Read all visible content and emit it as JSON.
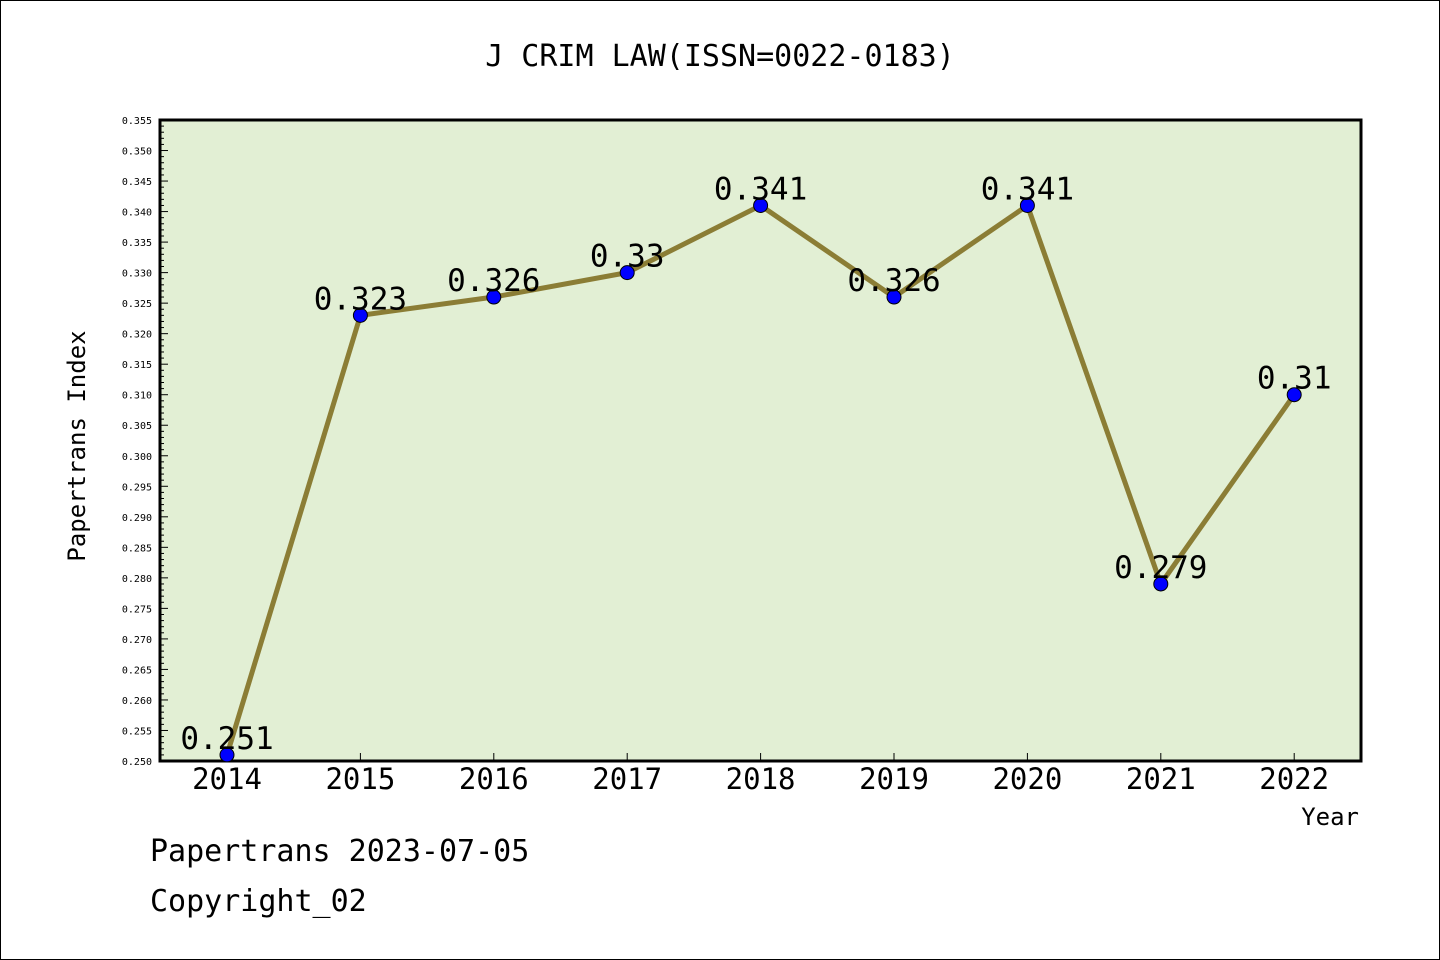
{
  "chart_data": {
    "type": "line",
    "title": "J CRIM LAW(ISSN=0022-0183)",
    "xlabel": "Year",
    "ylabel": "Papertrans Index",
    "categories": [
      "2014",
      "2015",
      "2016",
      "2017",
      "2018",
      "2019",
      "2020",
      "2021",
      "2022"
    ],
    "series": [
      {
        "values": [
          0.251,
          0.323,
          0.326,
          0.33,
          0.341,
          0.326,
          0.341,
          0.279,
          0.31
        ],
        "value_labels": [
          "0.251",
          "0.323",
          "0.326",
          "0.33",
          "0.341",
          "0.326",
          "0.341",
          "0.279",
          "0.31"
        ]
      }
    ],
    "ylim": [
      0.25,
      0.355
    ],
    "ytick_labels": [
      "0.250",
      "0.255",
      "0.260",
      "0.265",
      "0.270",
      "0.275",
      "0.280",
      "0.285",
      "0.290",
      "0.295",
      "0.300",
      "0.305",
      "0.310",
      "0.315",
      "0.320",
      "0.325",
      "0.330",
      "0.335",
      "0.340",
      "0.345",
      "0.350",
      "0.355"
    ],
    "grid": false,
    "colors": {
      "plot_background": "#e2efd4",
      "line": "#8b7d35",
      "marker": "#0000ff"
    }
  },
  "footer": {
    "date_line": "Papertrans 2023-07-05",
    "copyright": "Copyright_02"
  }
}
